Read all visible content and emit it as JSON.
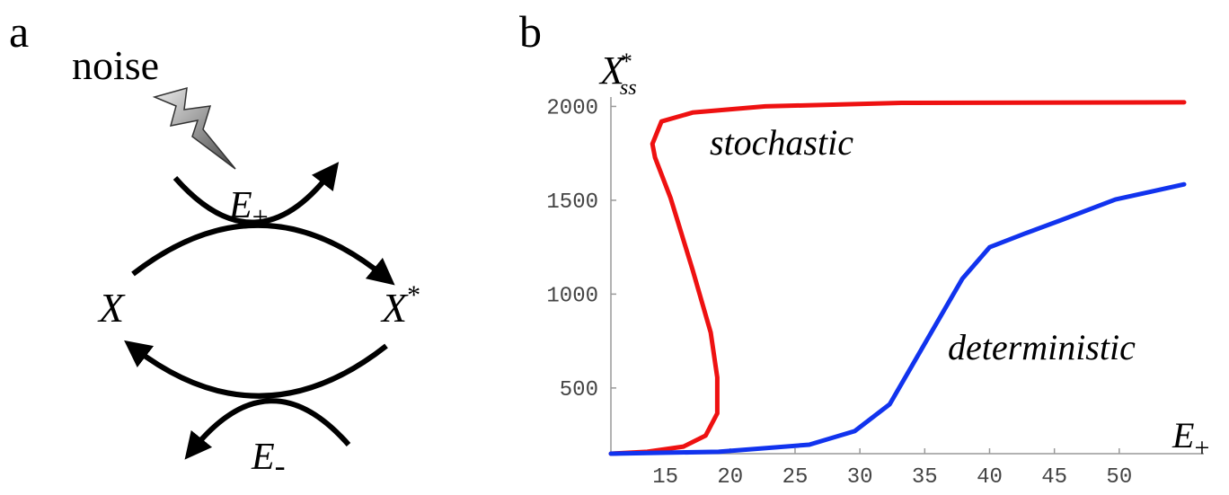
{
  "panel_labels": [
    "a",
    "b"
  ],
  "diagram": {
    "noise": "noise",
    "enzyme_plus": {
      "base": "E",
      "sub": "+"
    },
    "substrate": "X",
    "product": {
      "base": "X",
      "sup": "*"
    },
    "enzyme_minus": {
      "base": "E",
      "sub": "-"
    }
  },
  "chart_data": {
    "type": "line",
    "y_label": {
      "base": "X",
      "sup": "*",
      "sub": "ss"
    },
    "x_label": {
      "base": "E",
      "sub": "+"
    },
    "xlim": [
      10.8,
      55.9
    ],
    "ylim": [
      150,
      2050
    ],
    "xticks": [
      15,
      20,
      25,
      30,
      35,
      40,
      45,
      50
    ],
    "yticks": [
      500,
      1000,
      1500,
      2000
    ],
    "annotations": [
      "stochastic",
      "deterministic"
    ],
    "series": [
      {
        "name": "stochastic",
        "color": "#ee1111",
        "x": [
          10.8,
          13.6,
          16.4,
          18.1,
          19.0,
          19.0,
          18.5,
          17.1,
          15.4,
          14.2,
          14.0,
          14.7,
          17.1,
          22.7,
          33.2,
          55.0
        ],
        "values": [
          150,
          160,
          188,
          246,
          365,
          556,
          795,
          1130,
          1512,
          1728,
          1800,
          1920,
          1967,
          2000,
          2019,
          2022
        ]
      },
      {
        "name": "deterministic",
        "color": "#1133ee",
        "x": [
          10.8,
          19.1,
          26.1,
          29.6,
          32.3,
          35.1,
          37.9,
          40.0,
          42.7,
          45.5,
          49.7,
          55.0
        ],
        "values": [
          150,
          160,
          198,
          270,
          413,
          748,
          1082,
          1250,
          1322,
          1394,
          1504,
          1585
        ]
      }
    ]
  }
}
